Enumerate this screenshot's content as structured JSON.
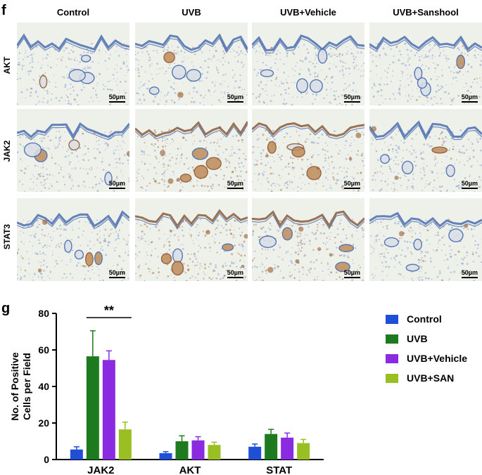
{
  "panel_f": {
    "letter": "f",
    "columns": [
      "Control",
      "UVB",
      "UVB+Vehicle",
      "UVB+Sanshool"
    ],
    "rows": [
      "AKT",
      "JAK2",
      "STAT3"
    ],
    "scale_label": "50µm",
    "stain_levels": [
      [
        0.05,
        0.15,
        0.1,
        0.05
      ],
      [
        0.15,
        0.85,
        0.55,
        0.25
      ],
      [
        0.2,
        0.8,
        0.65,
        0.2
      ]
    ]
  },
  "panel_g": {
    "letter": "g",
    "significance": "**"
  },
  "colors": {
    "control": "#1f4fd6",
    "uvb": "#1e7a1e",
    "uvb_vehicle": "#8a2be2",
    "uvb_san": "#9abf22",
    "tissue_blue": "#4a6fb0",
    "tissue_brown": "#a05a2c"
  },
  "chart_data": {
    "type": "bar",
    "categories": [
      "JAK2",
      "AKT",
      "STAT"
    ],
    "series": [
      {
        "name": "Control",
        "values": [
          5.5,
          3.5,
          7
        ],
        "errors": [
          1.5,
          0.8,
          1.5
        ]
      },
      {
        "name": "UVB",
        "values": [
          56.5,
          10,
          14
        ],
        "errors": [
          14,
          3,
          2.5
        ]
      },
      {
        "name": "UVB+Vehicle",
        "values": [
          54.5,
          10.5,
          12
        ],
        "errors": [
          5,
          2,
          2.5
        ]
      },
      {
        "name": "UVB+SAN",
        "values": [
          16.5,
          8,
          9
        ],
        "errors": [
          4,
          1.5,
          2
        ]
      }
    ],
    "ylabel": "No. of Positive Cells per Field",
    "xlabel": "",
    "ylim": [
      0,
      80
    ],
    "yticks": [
      0,
      20,
      40,
      60,
      80
    ],
    "legend_position": "top-right"
  }
}
